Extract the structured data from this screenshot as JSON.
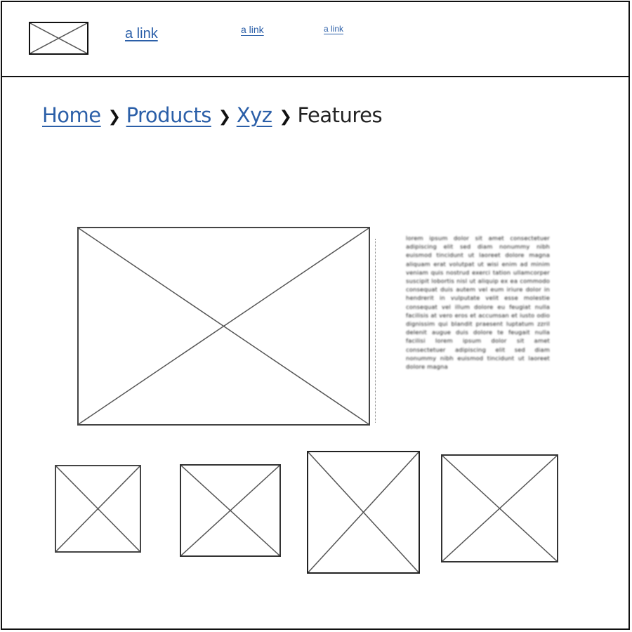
{
  "header": {
    "logo_icon": "image-placeholder-icon",
    "links": [
      "a link",
      "a link",
      "a link"
    ]
  },
  "breadcrumb": {
    "items": [
      "Home",
      "Products",
      "Xyz"
    ],
    "current": "Features",
    "separator": "❯"
  },
  "main": {
    "hero_icon": "image-placeholder-icon",
    "text": "lorem ipsum dolor sit amet consectetuer adipiscing elit sed diam nonummy nibh euismod tincidunt ut laoreet dolore magna aliquam erat volutpat ut wisi enim ad minim veniam quis nostrud exerci tation ullamcorper suscipit lobortis nisl ut aliquip ex ea commodo consequat duis autem vel eum iriure dolor in hendrerit in vulputate velit esse molestie consequat vel illum dolore eu feugiat nulla facilisis at vero eros et accumsan et iusto odio dignissim qui blandit praesent luptatum zzril delenit augue duis dolore te feugait nulla facilisi lorem ipsum dolor sit amet consectetuer adipiscing elit sed diam nonummy nibh euismod tincidunt ut laoreet dolore magna"
  },
  "thumbnails": {
    "icon": "image-placeholder-icon",
    "count": 4
  }
}
